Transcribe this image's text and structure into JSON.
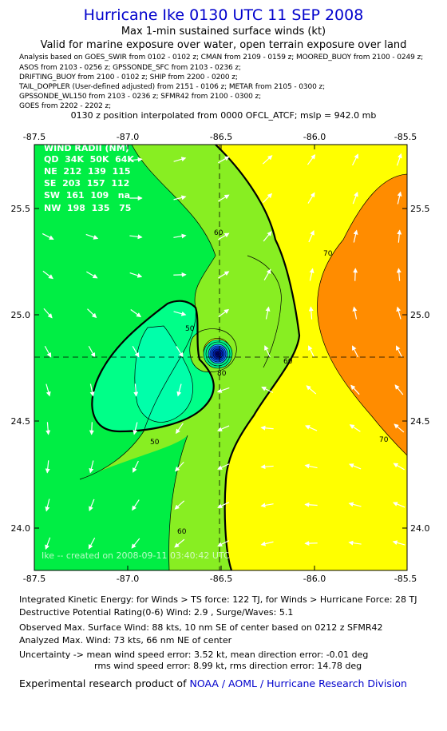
{
  "header": {
    "title": "Hurricane Ike 0130 UTC 11 SEP 2008",
    "subtitle1": "Max 1-min sustained surface winds (kt)",
    "subtitle2": "Valid for marine exposure over water, open terrain exposure over land"
  },
  "sources": [
    "Analysis based on  GOES_SWIR from 0102 - 0102 z;  CMAN from 2109 - 0159 z;  MOORED_BUOY from 2100 - 0249 z;",
    "ASOS from 2103 - 0256 z;  GPSSONDE_SFC from 2103 - 0236 z;",
    "DRIFTING_BUOY from 2100 - 0102 z;  SHIP from 2200 - 0200 z;",
    "TAIL_DOPPLER (User-defined adjusted) from 2151 - 0106 z;  METAR from 2105 - 0300 z;",
    "GPSSONDE_WL150 from 2103 - 0236 z;  SFMR42 from 2100 - 0300 z;",
    "GOES from 2202 - 2202 z;"
  ],
  "position_note": "0130 z position interpolated from 0000 OFCL_ATCF; mslp = 942.0 mb",
  "map": {
    "lon_ticks": [
      "-87.5",
      "-87.0",
      "-86.5",
      "-86.0",
      "-85.5"
    ],
    "lat_ticks": [
      "25.5",
      "25.0",
      "24.5",
      "24.0"
    ],
    "contour_labels": [
      "60",
      "70",
      "50",
      "60",
      "80",
      "70",
      "50",
      "60"
    ],
    "wind_radii": {
      "title": "WIND RADII (NM)",
      "header": "QD  34K  50K  64K",
      "rows": [
        "NE  212  139  115",
        "SE  203  157  112",
        "SW  161  109   na",
        "NW  198  135   75"
      ]
    },
    "watermark": "Ike -- created on 2008-09-11 03:40:42 UTC",
    "colors": {
      "band_40_50": "#00ee44",
      "band_50_60": "#88ee22",
      "band_60_70": "#ffff00",
      "band_70_80": "#ff8c00",
      "band_inner": "#00ffaa",
      "band_core": "#00ff88"
    }
  },
  "footer": {
    "ike": "Integrated Kinetic Energy:  for Winds > TS force: 122 TJ,  for Winds > Hurricane Force: 28 TJ",
    "dpr": "Destructive Potential Rating(0-6)   Wind: 2.9 , Surge/Waves: 5.1",
    "obs": "Observed Max. Surface Wind: 88 kts, 10 nm SE of center based on 0212 z SFMR42",
    "analyzed": "Analyzed Max. Wind: 73 kts, 66 nm NE of center",
    "uncert1": "Uncertainty -> mean wind speed error: 3.52 kt,   mean direction error:  -0.01 deg",
    "uncert2": "rms wind speed error: 8.99 kt,   rms direction error: 14.78 deg",
    "credit_prefix": "Experimental research product of",
    "credit_org": "NOAA / AOML / Hurricane Research Division"
  }
}
